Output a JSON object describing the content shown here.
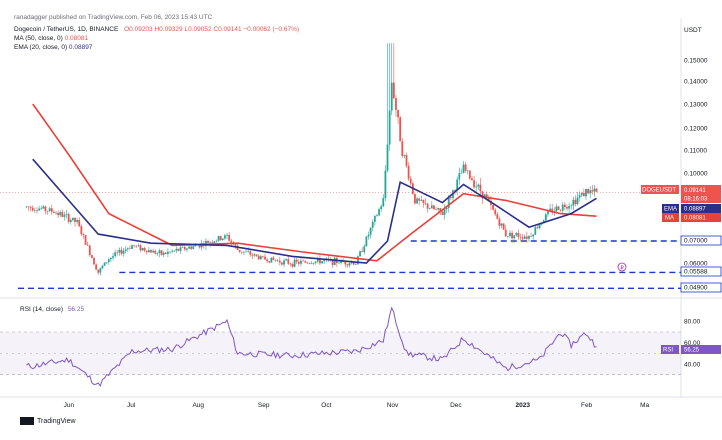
{
  "header": {
    "publisher": "ranadagger published on TradingView.com, Feb 06, 2023 15:43 UTC",
    "symbol": "Dogecoin / TetherUS, 1D, BINANCE",
    "ohlc": "O0.09203 H0.09329 L0.09052 C0.09141 −0.00062 (−0.67%)",
    "ma_label": "MA (50, close, 0)",
    "ma_value": "0.08081",
    "ema_label": "EMA (20, close, 0)",
    "ema_value": "0.08897"
  },
  "price_axis": {
    "currency": "USDT",
    "ticks": [
      "0.15000",
      "0.14000",
      "0.13000",
      "0.12000",
      "0.11000",
      "0.10000",
      "0.09000",
      "0.08000",
      "0.07000",
      "0.06000",
      "0.05000"
    ]
  },
  "badges": {
    "symbol_label": "DOGEUSDT",
    "symbol_price": "0.09141",
    "countdown": "08:16:03",
    "ema_tag": "EMA",
    "ema_value": "0.08897",
    "ma_tag": "MA",
    "ma_value": "0.08081",
    "support1": "0.07000",
    "support2": "0.05588",
    "support3": "0.04900"
  },
  "rsi": {
    "label": "RSI (14, close)",
    "value": "56.25",
    "tag": "RSI",
    "ticks": [
      "80.00",
      "60.00",
      "40.00"
    ]
  },
  "x_axis": [
    "Jun",
    "Jul",
    "Aug",
    "Sep",
    "Oct",
    "Nov",
    "Dec",
    "2023",
    "Feb",
    "Ma"
  ],
  "footer": {
    "brand": "TradingView"
  },
  "colors": {
    "up": "#26a69a",
    "down": "#ef5350",
    "ema": "#2a2e8c",
    "ma": "#e8413a",
    "rsi": "#7e57c2",
    "support": "#1c36c8"
  },
  "chart_data": {
    "type": "candlestick",
    "title": "Dogecoin / TetherUS, 1D, BINANCE",
    "ylabel": "USDT",
    "ylim": [
      0.045,
      0.16
    ],
    "support_levels": [
      0.07,
      0.05588,
      0.049
    ],
    "months": [
      "Jun",
      "Jul",
      "Aug",
      "Sep",
      "Oct",
      "Nov",
      "Dec",
      "2023",
      "Feb"
    ],
    "close_path": [
      [
        "2022-05-15",
        0.085
      ],
      [
        "2022-05-25",
        0.083
      ],
      [
        "2022-06-05",
        0.078
      ],
      [
        "2022-06-15",
        0.056
      ],
      [
        "2022-06-20",
        0.062
      ],
      [
        "2022-07-01",
        0.068
      ],
      [
        "2022-07-15",
        0.064
      ],
      [
        "2022-08-01",
        0.068
      ],
      [
        "2022-08-15",
        0.072
      ],
      [
        "2022-08-20",
        0.066
      ],
      [
        "2022-09-01",
        0.062
      ],
      [
        "2022-09-15",
        0.06
      ],
      [
        "2022-10-01",
        0.061
      ],
      [
        "2022-10-15",
        0.06
      ],
      [
        "2022-10-28",
        0.088
      ],
      [
        "2022-11-01",
        0.14
      ],
      [
        "2022-11-06",
        0.11
      ],
      [
        "2022-11-12",
        0.088
      ],
      [
        "2022-11-25",
        0.082
      ],
      [
        "2022-12-05",
        0.102
      ],
      [
        "2022-12-15",
        0.09
      ],
      [
        "2022-12-25",
        0.073
      ],
      [
        "2023-01-05",
        0.072
      ],
      [
        "2023-01-15",
        0.083
      ],
      [
        "2023-01-25",
        0.087
      ],
      [
        "2023-02-01",
        0.092
      ],
      [
        "2023-02-06",
        0.0914
      ]
    ],
    "ema20_path": [
      [
        "2022-05-15",
        0.106
      ],
      [
        "2022-06-01",
        0.088
      ],
      [
        "2022-06-15",
        0.073
      ],
      [
        "2022-07-10",
        0.069
      ],
      [
        "2022-08-15",
        0.068
      ],
      [
        "2022-09-15",
        0.063
      ],
      [
        "2022-10-20",
        0.06
      ],
      [
        "2022-10-30",
        0.07
      ],
      [
        "2022-11-05",
        0.096
      ],
      [
        "2022-11-25",
        0.087
      ],
      [
        "2022-12-05",
        0.095
      ],
      [
        "2022-12-20",
        0.086
      ],
      [
        "2023-01-05",
        0.076
      ],
      [
        "2023-01-25",
        0.082
      ],
      [
        "2023-02-06",
        0.08897
      ]
    ],
    "ma50_path": [
      [
        "2022-05-15",
        0.13
      ],
      [
        "2022-06-01",
        0.108
      ],
      [
        "2022-06-20",
        0.082
      ],
      [
        "2022-07-20",
        0.068
      ],
      [
        "2022-08-20",
        0.069
      ],
      [
        "2022-09-20",
        0.065
      ],
      [
        "2022-10-25",
        0.061
      ],
      [
        "2022-11-10",
        0.073
      ],
      [
        "2022-12-05",
        0.091
      ],
      [
        "2022-12-25",
        0.088
      ],
      [
        "2023-01-20",
        0.082
      ],
      [
        "2023-02-06",
        0.08081
      ]
    ],
    "rsi_path": [
      [
        "2022-05-15",
        38
      ],
      [
        "2022-06-01",
        44
      ],
      [
        "2022-06-15",
        20
      ],
      [
        "2022-07-01",
        52
      ],
      [
        "2022-07-20",
        54
      ],
      [
        "2022-08-15",
        80
      ],
      [
        "2022-08-20",
        50
      ],
      [
        "2022-09-15",
        48
      ],
      [
        "2022-10-15",
        52
      ],
      [
        "2022-10-28",
        62
      ],
      [
        "2022-11-01",
        92
      ],
      [
        "2022-11-08",
        50
      ],
      [
        "2022-11-25",
        44
      ],
      [
        "2022-12-05",
        64
      ],
      [
        "2022-12-25",
        36
      ],
      [
        "2023-01-10",
        44
      ],
      [
        "2023-01-20",
        70
      ],
      [
        "2023-01-25",
        58
      ],
      [
        "2023-02-01",
        69
      ],
      [
        "2023-02-06",
        56.25
      ]
    ],
    "rsi_bands": [
      70,
      30
    ]
  }
}
